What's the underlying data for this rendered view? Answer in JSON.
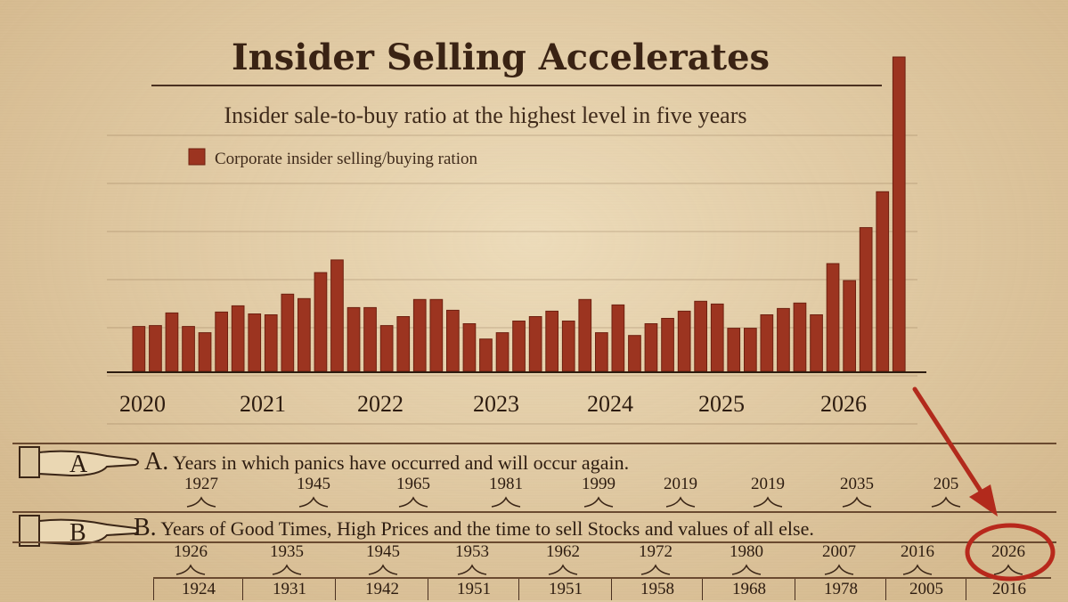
{
  "colors": {
    "bar": "#9c3420",
    "bar_dark": "#6e2010",
    "arrow": "#b22a1c",
    "circle": "#b8281c"
  },
  "chart_data": {
    "type": "bar",
    "title": "Insider Selling Accelerates",
    "subtitle": "Insider sale-to-buy ratio at the highest level in five years",
    "legend": [
      "Corporate insider selling/buying ration"
    ],
    "x_tick_labels": [
      "2020",
      "2021",
      "2022",
      "2023",
      "2024",
      "2025",
      "2026"
    ],
    "xlabel": "",
    "ylabel": "",
    "grid": true,
    "series": [
      {
        "name": "Corporate insider selling/buying ration",
        "values": [
          5.0,
          5.1,
          6.5,
          5.0,
          4.3,
          6.6,
          7.3,
          6.4,
          6.3,
          8.6,
          8.1,
          11.0,
          12.4,
          7.1,
          7.1,
          5.1,
          6.1,
          8.0,
          8.0,
          6.8,
          5.3,
          3.6,
          4.3,
          5.6,
          6.1,
          6.7,
          5.6,
          8.0,
          4.3,
          7.4,
          4.0,
          5.3,
          5.9,
          6.7,
          7.8,
          7.5,
          4.8,
          4.8,
          6.3,
          7.0,
          7.6,
          6.3,
          12.0,
          10.1,
          16.0,
          20.0,
          35.0
        ]
      }
    ]
  },
  "panel": {
    "row_a": {
      "letter": "A",
      "heading_letter": "A.",
      "heading": "Years in which panics have occurred and will occur again.",
      "years": [
        "1927",
        "1945",
        "1965",
        "1981",
        "1999",
        "2019",
        "2019",
        "2035",
        "205"
      ]
    },
    "row_b": {
      "letter": "B",
      "heading_letter": "B.",
      "heading": "Years of Good Times, High Prices and the time to sell Stocks and values of all else.",
      "years": [
        "1926",
        "1935",
        "1945",
        "1953",
        "1962",
        "1972",
        "1980",
        "2007",
        "2016",
        "2026"
      ],
      "bottom_years": [
        "1924",
        "1931",
        "1942",
        "1951",
        "1951",
        "1958",
        "1968",
        "1978",
        "2005",
        "2016"
      ]
    }
  }
}
